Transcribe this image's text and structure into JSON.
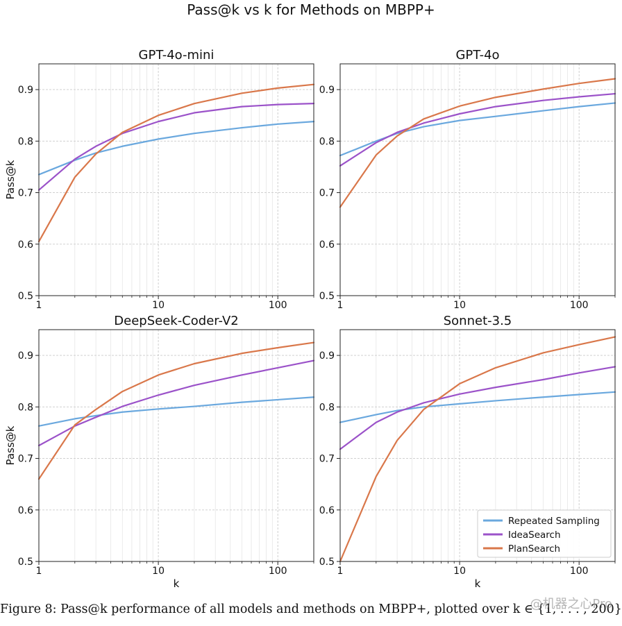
{
  "figure": {
    "suptitle": "Pass@k vs k for Methods on MBPP+",
    "caption": "Figure 8: Pass@k performance of all models and methods on MBPP+, plotted over k ∈ {1, . . . , 200}.",
    "watermark": "@机器之心Pro"
  },
  "colors": {
    "Repeated Sampling": "#6aa8de",
    "IdeaSearch": "#9b52c9",
    "PlanSearch": "#d9774a"
  },
  "chart_data": [
    {
      "type": "line",
      "title": "GPT-4o-mini",
      "xlabel": "",
      "ylabel": "Pass@k",
      "xscale": "log",
      "xlim": [
        1,
        200
      ],
      "ylim": [
        0.5,
        0.95
      ],
      "xticks": [
        1,
        10,
        100
      ],
      "xtick_labels": [
        "1",
        "10",
        "100"
      ],
      "yticks": [
        0.5,
        0.6,
        0.7,
        0.8,
        0.9
      ],
      "ytick_labels": [
        "0.5",
        "0.6",
        "0.7",
        "0.8",
        "0.9"
      ],
      "grid": true,
      "series": [
        {
          "name": "Repeated Sampling",
          "x": [
            1,
            2,
            3,
            5,
            10,
            20,
            50,
            100,
            200
          ],
          "values": [
            0.735,
            0.763,
            0.777,
            0.79,
            0.804,
            0.815,
            0.826,
            0.833,
            0.838
          ]
        },
        {
          "name": "IdeaSearch",
          "x": [
            1,
            2,
            3,
            5,
            10,
            20,
            50,
            100,
            200
          ],
          "values": [
            0.705,
            0.765,
            0.79,
            0.815,
            0.838,
            0.855,
            0.867,
            0.871,
            0.873
          ]
        },
        {
          "name": "PlanSearch",
          "x": [
            1,
            2,
            3,
            5,
            10,
            20,
            50,
            100,
            200
          ],
          "values": [
            0.605,
            0.73,
            0.775,
            0.817,
            0.85,
            0.873,
            0.893,
            0.903,
            0.91
          ]
        }
      ]
    },
    {
      "type": "line",
      "title": "GPT-4o",
      "xlabel": "",
      "ylabel": "",
      "xscale": "log",
      "xlim": [
        1,
        200
      ],
      "ylim": [
        0.5,
        0.95
      ],
      "xticks": [
        1,
        10,
        100
      ],
      "xtick_labels": [
        "1",
        "10",
        "100"
      ],
      "yticks": [
        0.5,
        0.6,
        0.7,
        0.8,
        0.9
      ],
      "ytick_labels": [
        "0.5",
        "0.6",
        "0.7",
        "0.8",
        "0.9"
      ],
      "grid": true,
      "series": [
        {
          "name": "Repeated Sampling",
          "x": [
            1,
            2,
            3,
            5,
            10,
            20,
            50,
            100,
            200
          ],
          "values": [
            0.772,
            0.8,
            0.815,
            0.828,
            0.84,
            0.848,
            0.859,
            0.867,
            0.874
          ]
        },
        {
          "name": "IdeaSearch",
          "x": [
            1,
            2,
            3,
            5,
            10,
            20,
            50,
            100,
            200
          ],
          "values": [
            0.752,
            0.797,
            0.817,
            0.835,
            0.853,
            0.867,
            0.879,
            0.886,
            0.892
          ]
        },
        {
          "name": "PlanSearch",
          "x": [
            1,
            2,
            3,
            5,
            10,
            20,
            50,
            100,
            200
          ],
          "values": [
            0.672,
            0.773,
            0.81,
            0.843,
            0.868,
            0.885,
            0.901,
            0.912,
            0.921
          ]
        }
      ]
    },
    {
      "type": "line",
      "title": "DeepSeek-Coder-V2",
      "xlabel": "k",
      "ylabel": "Pass@k",
      "xscale": "log",
      "xlim": [
        1,
        200
      ],
      "ylim": [
        0.5,
        0.95
      ],
      "xticks": [
        1,
        10,
        100
      ],
      "xtick_labels": [
        "1",
        "10",
        "100"
      ],
      "yticks": [
        0.5,
        0.6,
        0.7,
        0.8,
        0.9
      ],
      "ytick_labels": [
        "0.5",
        "0.6",
        "0.7",
        "0.8",
        "0.9"
      ],
      "grid": true,
      "series": [
        {
          "name": "Repeated Sampling",
          "x": [
            1,
            2,
            3,
            5,
            10,
            20,
            50,
            100,
            200
          ],
          "values": [
            0.763,
            0.777,
            0.783,
            0.79,
            0.796,
            0.801,
            0.809,
            0.814,
            0.819
          ]
        },
        {
          "name": "IdeaSearch",
          "x": [
            1,
            2,
            3,
            5,
            10,
            20,
            50,
            100,
            200
          ],
          "values": [
            0.725,
            0.763,
            0.78,
            0.801,
            0.823,
            0.842,
            0.862,
            0.876,
            0.89
          ]
        },
        {
          "name": "PlanSearch",
          "x": [
            1,
            2,
            3,
            5,
            10,
            20,
            50,
            100,
            200
          ],
          "values": [
            0.66,
            0.765,
            0.795,
            0.83,
            0.862,
            0.884,
            0.904,
            0.915,
            0.925
          ]
        }
      ]
    },
    {
      "type": "line",
      "title": "Sonnet-3.5",
      "xlabel": "k",
      "ylabel": "",
      "xscale": "log",
      "xlim": [
        1,
        200
      ],
      "ylim": [
        0.5,
        0.95
      ],
      "xticks": [
        1,
        10,
        100
      ],
      "xtick_labels": [
        "1",
        "10",
        "100"
      ],
      "yticks": [
        0.5,
        0.6,
        0.7,
        0.8,
        0.9
      ],
      "ytick_labels": [
        "0.5",
        "0.6",
        "0.7",
        "0.8",
        "0.9"
      ],
      "grid": true,
      "legend": {
        "location": "lower-right",
        "entries": [
          "Repeated Sampling",
          "IdeaSearch",
          "PlanSearch"
        ]
      },
      "series": [
        {
          "name": "Repeated Sampling",
          "x": [
            1,
            2,
            3,
            5,
            10,
            20,
            50,
            100,
            200
          ],
          "values": [
            0.77,
            0.785,
            0.793,
            0.8,
            0.806,
            0.812,
            0.819,
            0.824,
            0.829
          ]
        },
        {
          "name": "IdeaSearch",
          "x": [
            1,
            2,
            3,
            5,
            10,
            20,
            50,
            100,
            200
          ],
          "values": [
            0.718,
            0.77,
            0.79,
            0.808,
            0.825,
            0.838,
            0.853,
            0.866,
            0.878
          ]
        },
        {
          "name": "PlanSearch",
          "x": [
            1,
            2,
            3,
            5,
            10,
            20,
            50,
            100,
            200
          ],
          "values": [
            0.5,
            0.665,
            0.735,
            0.795,
            0.845,
            0.876,
            0.905,
            0.921,
            0.936
          ]
        }
      ]
    }
  ]
}
